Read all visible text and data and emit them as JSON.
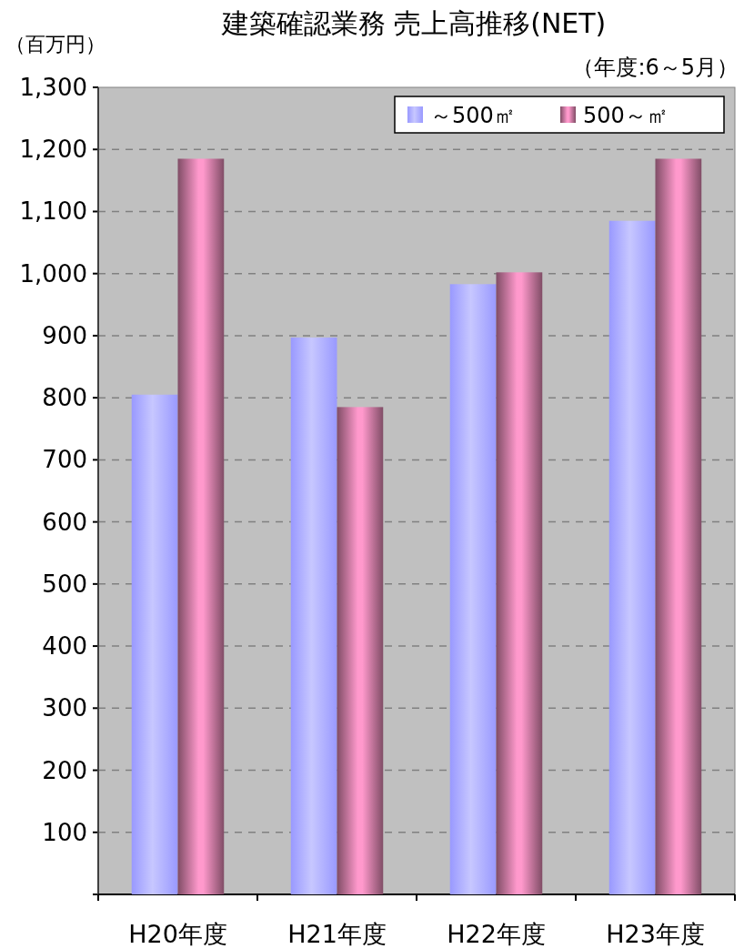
{
  "chart_data": {
    "type": "bar",
    "title": "建築確認業務 売上高推移(NET)",
    "subtitle": "（年度:6～5月）",
    "ylabel": "（百万円）",
    "categories": [
      "H20年度",
      "H21年度",
      "H22年度",
      "H23年度"
    ],
    "series": [
      {
        "name": "～500㎡",
        "color": "#9999ff",
        "values": [
          805,
          897,
          983,
          1085
        ]
      },
      {
        "name": "500～㎡",
        "color": "#ff99cc",
        "values": [
          1185,
          785,
          1002,
          1185
        ]
      }
    ],
    "ylim": [
      0,
      1300
    ],
    "yticks": [
      {
        "value": 0,
        "label": null
      },
      100,
      200,
      300,
      400,
      500,
      600,
      700,
      800,
      900,
      {
        "value": 1000,
        "label": "1,000"
      },
      {
        "value": 1100,
        "label": "1,100"
      },
      {
        "value": 1200,
        "label": "1,200"
      },
      {
        "value": 1300,
        "label": "1,300"
      }
    ],
    "grid": "y",
    "legend": "top right"
  }
}
